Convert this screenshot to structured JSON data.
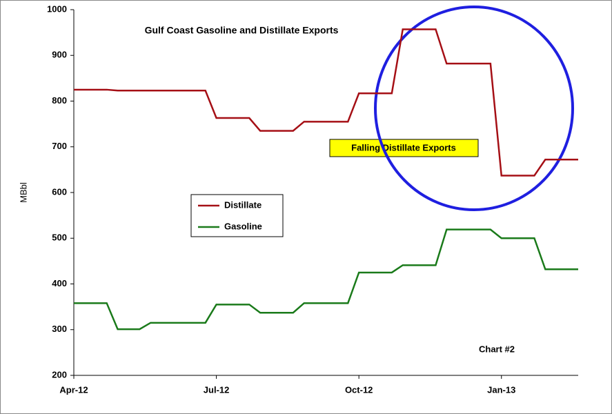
{
  "chart_data": {
    "type": "line",
    "title": "Gulf Coast Gasoline and Distillate Exports",
    "y_label": "MBbl",
    "annotations": [
      "Falling Distillate Exports",
      "Chart #2"
    ],
    "categories": [
      "Apr-12",
      null,
      null,
      null,
      null,
      null,
      null,
      null,
      null,
      null,
      null,
      null,
      null,
      "Jul-12",
      null,
      null,
      null,
      null,
      null,
      null,
      null,
      null,
      null,
      null,
      null,
      null,
      "Oct-12",
      null,
      null,
      null,
      null,
      null,
      null,
      null,
      null,
      null,
      null,
      null,
      null,
      "Jan-13",
      null,
      null,
      null,
      null,
      null,
      null,
      null
    ],
    "series": [
      {
        "name": "Distillate",
        "color": "#a50f15",
        "values": [
          825,
          825,
          825,
          825,
          823,
          823,
          823,
          823,
          823,
          823,
          823,
          823,
          823,
          763,
          763,
          763,
          763,
          735,
          735,
          735,
          735,
          755,
          755,
          755,
          755,
          755,
          817,
          817,
          817,
          817,
          957,
          957,
          957,
          957,
          882,
          882,
          882,
          882,
          882,
          637,
          637,
          637,
          637,
          672,
          672,
          672,
          672
        ]
      },
      {
        "name": "Gasoline",
        "color": "#1a7a1a",
        "values": [
          358,
          358,
          358,
          358,
          301,
          301,
          301,
          315,
          315,
          315,
          315,
          315,
          315,
          355,
          355,
          355,
          355,
          337,
          337,
          337,
          337,
          358,
          358,
          358,
          358,
          358,
          425,
          425,
          425,
          425,
          441,
          441,
          441,
          441,
          519,
          519,
          519,
          519,
          519,
          500,
          500,
          500,
          500,
          432,
          432,
          432,
          432
        ]
      }
    ],
    "ylim": [
      200,
      1000
    ],
    "yticks": [
      200,
      300,
      400,
      500,
      600,
      700,
      800,
      900,
      1000
    ],
    "grid": false
  }
}
